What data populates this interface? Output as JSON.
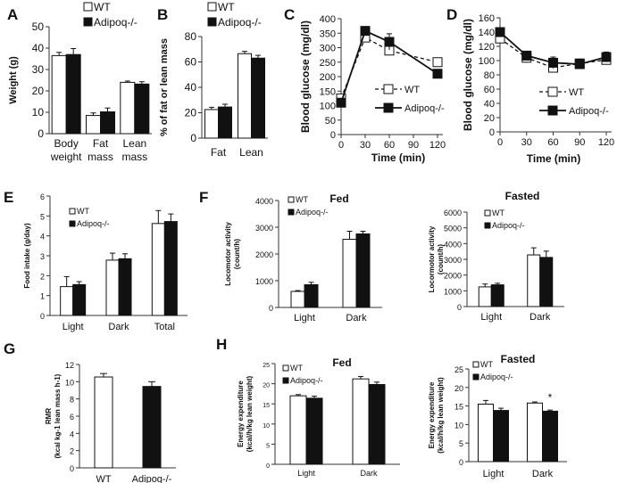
{
  "colors": {
    "wt_fill": "#ffffff",
    "ko_fill": "#111111",
    "axis": "#333333"
  },
  "chart_data": [
    {
      "id": "A",
      "panel_label": "A",
      "type": "bar",
      "title": "",
      "xlabel": "",
      "ylabel": "Weight (g)",
      "ylim": [
        0,
        50
      ],
      "yticks": [
        "0",
        "10",
        "20",
        "30",
        "40",
        "50"
      ],
      "categories": [
        [
          "Body",
          "weight"
        ],
        [
          "Fat",
          "mass"
        ],
        [
          "Lean",
          "mass"
        ]
      ],
      "series": [
        {
          "name": "WT",
          "values": [
            36.5,
            8.5,
            24.0
          ],
          "errors": [
            1.5,
            1.2,
            0.6
          ]
        },
        {
          "name": "Adipoq-/-",
          "values": [
            37.0,
            10.2,
            23.2
          ],
          "errors": [
            2.8,
            1.8,
            1.1
          ]
        }
      ],
      "legend": [
        "WT",
        "Adipoq-/-"
      ],
      "legend_position": "top-right",
      "annotations": []
    },
    {
      "id": "B",
      "panel_label": "B",
      "type": "bar",
      "title": "",
      "xlabel": "",
      "ylabel": "% of fat or lean mass",
      "ylim": [
        0,
        80
      ],
      "yticks": [
        "0",
        "20",
        "40",
        "60",
        "80"
      ],
      "categories": [
        [
          "Fat"
        ],
        [
          "Lean"
        ]
      ],
      "series": [
        {
          "name": "WT",
          "values": [
            22.5,
            66.5
          ],
          "errors": [
            1.8,
            1.8
          ]
        },
        {
          "name": "Adipoq-/-",
          "values": [
            24.5,
            63.0
          ],
          "errors": [
            2.2,
            2.2
          ]
        }
      ],
      "legend": [
        "WT",
        "Adipoq-/-"
      ],
      "legend_position": "top",
      "annotations": []
    },
    {
      "id": "C",
      "panel_label": "C",
      "type": "line",
      "title": "",
      "xlabel": "Time (min)",
      "ylabel": "Blood glucose (mg/dl)",
      "xlim": [
        0,
        120
      ],
      "xticks": [
        "0",
        "30",
        "60",
        "90",
        "120"
      ],
      "ylim": [
        0,
        400
      ],
      "yticks": [
        "0",
        "50",
        "100",
        "150",
        "200",
        "250",
        "300",
        "350",
        "400"
      ],
      "x": [
        0,
        30,
        60,
        120
      ],
      "series": [
        {
          "name": "WT",
          "values": [
            125,
            335,
            290,
            250
          ],
          "errors": [
            10,
            15,
            15,
            10
          ],
          "style": "dashed-open"
        },
        {
          "name": "Adipoq-/-",
          "values": [
            110,
            358,
            320,
            210
          ],
          "errors": [
            8,
            12,
            28,
            12
          ],
          "style": "solid-filled"
        }
      ],
      "legend": [
        "WT",
        "Adipoq-/-"
      ],
      "legend_position": "bottom-right",
      "annotations": []
    },
    {
      "id": "D",
      "panel_label": "D",
      "type": "line",
      "title": "",
      "xlabel": "Time (min)",
      "ylabel": "Blood glucose (mg/dl)",
      "xlim": [
        0,
        120
      ],
      "xticks": [
        "0",
        "30",
        "60",
        "90",
        "120"
      ],
      "ylim": [
        0,
        160
      ],
      "yticks": [
        "0",
        "20",
        "40",
        "60",
        "80",
        "100",
        "120",
        "140",
        "160"
      ],
      "x": [
        0,
        30,
        60,
        90,
        120
      ],
      "series": [
        {
          "name": "WT",
          "values": [
            131,
            104,
            90,
            96,
            101
          ],
          "errors": [
            5,
            7,
            5,
            6,
            5
          ],
          "style": "dashed-open"
        },
        {
          "name": "Adipoq-/-",
          "values": [
            140,
            107,
            97,
            95,
            105
          ],
          "errors": [
            4,
            5,
            8,
            6,
            7
          ],
          "style": "solid-filled"
        }
      ],
      "legend": [
        "WT",
        "Adipoq-/-"
      ],
      "legend_position": "bottom-right",
      "annotations": []
    },
    {
      "id": "E",
      "panel_label": "E",
      "type": "bar",
      "title": "",
      "xlabel": "",
      "ylabel": "Food intake (g/day)",
      "ylim": [
        0,
        6
      ],
      "yticks": [
        "0",
        "1",
        "2",
        "3",
        "4",
        "5",
        "6"
      ],
      "categories": [
        [
          "Light"
        ],
        [
          "Dark"
        ],
        [
          "Total"
        ]
      ],
      "series": [
        {
          "name": "WT",
          "values": [
            1.45,
            2.78,
            4.62
          ],
          "errors": [
            0.5,
            0.35,
            0.65
          ]
        },
        {
          "name": "Adipoq-/-",
          "values": [
            1.55,
            2.85,
            4.72
          ],
          "errors": [
            0.15,
            0.25,
            0.38
          ]
        }
      ],
      "legend": [
        "WT",
        "Adipoq-/-"
      ],
      "legend_position": "top-left",
      "annotations": []
    },
    {
      "id": "F-fed",
      "panel_label": "F",
      "type": "bar",
      "title": "Fed",
      "xlabel": "",
      "ylabel": [
        "Locomotor activity",
        "(count/h)"
      ],
      "ylim": [
        0,
        4000
      ],
      "yticks": [
        "0",
        "1000",
        "2000",
        "3000",
        "4000"
      ],
      "categories": [
        [
          "Light"
        ],
        [
          "Dark"
        ]
      ],
      "series": [
        {
          "name": "WT",
          "values": [
            600,
            2550
          ],
          "errors": [
            30,
            300
          ]
        },
        {
          "name": "Adipoq-/-",
          "values": [
            850,
            2750
          ],
          "errors": [
            90,
            100
          ]
        }
      ],
      "legend": [
        "WT",
        "Adipoq-/-"
      ],
      "legend_position": "top-left",
      "annotations": []
    },
    {
      "id": "F-fasted",
      "panel_label": "",
      "type": "bar",
      "title": "Fasted",
      "xlabel": "",
      "ylabel": [
        "Locormotor activity",
        "(count/h)"
      ],
      "ylim": [
        0,
        6000
      ],
      "yticks": [
        "0",
        "1000",
        "2000",
        "3000",
        "4000",
        "5000",
        "6000"
      ],
      "categories": [
        [
          "Light"
        ],
        [
          "Dark"
        ]
      ],
      "series": [
        {
          "name": "WT",
          "values": [
            1250,
            3280
          ],
          "errors": [
            180,
            450
          ]
        },
        {
          "name": "Adipoq-/-",
          "values": [
            1380,
            3120
          ],
          "errors": [
            100,
            400
          ]
        }
      ],
      "legend": [
        "WT",
        "Adipoq-/-"
      ],
      "legend_position": "top-left",
      "annotations": []
    },
    {
      "id": "G",
      "panel_label": "G",
      "type": "bar",
      "title": "",
      "xlabel": "",
      "ylabel": [
        "RMR",
        "(kcal kg-1 lean mass h-1)"
      ],
      "ylim": [
        0,
        12
      ],
      "yticks": [
        "0",
        "2",
        "4",
        "6",
        "8",
        "10",
        "12"
      ],
      "categories": [
        [
          "WT"
        ],
        [
          "Adipoq-/-"
        ]
      ],
      "single": true,
      "series": [
        {
          "name": "values",
          "values": [
            10.55,
            9.45
          ],
          "errors": [
            0.4,
            0.55
          ],
          "fills": [
            "wt",
            "ko"
          ]
        }
      ],
      "legend": [],
      "legend_position": "none",
      "annotations": []
    },
    {
      "id": "H-fed",
      "panel_label": "H",
      "type": "bar",
      "title": "Fed",
      "xlabel": "",
      "ylabel": [
        "Energy expenditure",
        "(kcal/h/kg lean weight)"
      ],
      "ylim": [
        0,
        25
      ],
      "yticks": [
        "0",
        "5",
        "10",
        "15",
        "20",
        "25"
      ],
      "categories": [
        [
          "Light"
        ],
        [
          "Dark"
        ]
      ],
      "series": [
        {
          "name": "WT",
          "values": [
            17.0,
            21.2
          ],
          "errors": [
            0.3,
            0.6
          ]
        },
        {
          "name": "Adipoq-/-",
          "values": [
            16.4,
            19.8
          ],
          "errors": [
            0.5,
            0.6
          ]
        }
      ],
      "legend": [
        "WT",
        "Adipoq-/-"
      ],
      "legend_position": "top-left",
      "annotations": []
    },
    {
      "id": "H-fasted",
      "panel_label": "",
      "type": "bar",
      "title": "Fasted",
      "xlabel": "",
      "ylabel": [
        "Energy expenditure",
        "(kcal/h/kg lean weight)"
      ],
      "ylim": [
        0,
        25
      ],
      "yticks": [
        "0",
        "5",
        "10",
        "15",
        "20",
        "25"
      ],
      "categories": [
        [
          "Light"
        ],
        [
          "Dark"
        ]
      ],
      "series": [
        {
          "name": "WT",
          "values": [
            15.5,
            15.8
          ],
          "errors": [
            1.0,
            0.3
          ]
        },
        {
          "name": "Adipoq-/-",
          "values": [
            13.8,
            13.6
          ],
          "errors": [
            0.6,
            0.3
          ]
        }
      ],
      "legend": [
        "WT",
        "Adipoq-/-"
      ],
      "legend_position": "top-left",
      "annotations": [
        {
          "text": "*",
          "category": 1,
          "series": 1
        }
      ]
    }
  ]
}
